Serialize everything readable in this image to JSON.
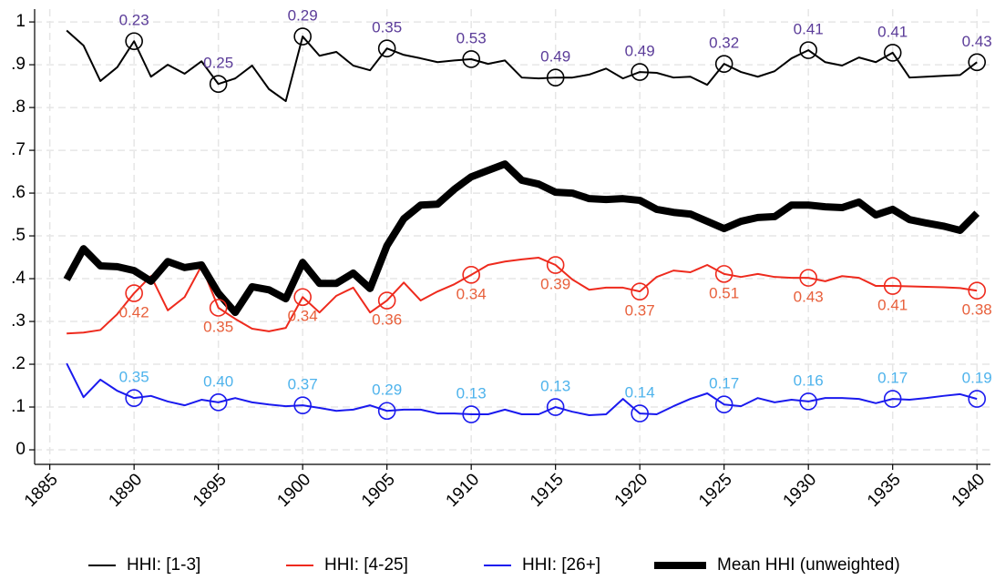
{
  "chart_data": {
    "type": "line",
    "x": [
      1886,
      1887,
      1888,
      1889,
      1890,
      1891,
      1892,
      1893,
      1894,
      1895,
      1896,
      1897,
      1898,
      1899,
      1900,
      1901,
      1902,
      1903,
      1904,
      1905,
      1906,
      1907,
      1908,
      1909,
      1910,
      1911,
      1912,
      1913,
      1914,
      1915,
      1916,
      1917,
      1918,
      1919,
      1920,
      1921,
      1922,
      1923,
      1924,
      1925,
      1926,
      1927,
      1928,
      1929,
      1930,
      1931,
      1932,
      1933,
      1934,
      1935,
      1936,
      1937,
      1938,
      1939,
      1940
    ],
    "series": [
      {
        "name": "HHI: [1-3]",
        "color": "#000000",
        "width": 2,
        "values": [
          0.98,
          0.945,
          0.862,
          0.894,
          0.955,
          0.872,
          0.9,
          0.879,
          0.908,
          0.855,
          0.868,
          0.898,
          0.843,
          0.815,
          0.966,
          0.921,
          0.93,
          0.898,
          0.887,
          0.938,
          0.923,
          0.915,
          0.906,
          0.91,
          0.913,
          0.902,
          0.91,
          0.87,
          0.868,
          0.87,
          0.87,
          0.877,
          0.891,
          0.868,
          0.883,
          0.881,
          0.87,
          0.872,
          0.853,
          0.902,
          0.883,
          0.872,
          0.885,
          0.915,
          0.934,
          0.906,
          0.898,
          0.917,
          0.906,
          0.928,
          0.87,
          0.872,
          0.874,
          0.876,
          0.906
        ],
        "annotation_years": [
          1890,
          1895,
          1900,
          1905,
          1910,
          1915,
          1920,
          1925,
          1930,
          1935,
          1940
        ],
        "annotation_labels": [
          "0.23",
          "0.25",
          "0.29",
          "0.35",
          "0.53",
          "0.49",
          "0.49",
          "0.32",
          "0.41",
          "0.41",
          "0.43"
        ],
        "label_color": "#5b3c99",
        "label_position": "above"
      },
      {
        "name": "HHI: [4-25]",
        "color": "#ee2a1d",
        "width": 2,
        "values": [
          0.272,
          0.274,
          0.28,
          0.317,
          0.366,
          0.406,
          0.326,
          0.357,
          0.43,
          0.332,
          0.306,
          0.283,
          0.277,
          0.285,
          0.357,
          0.321,
          0.36,
          0.379,
          0.321,
          0.349,
          0.391,
          0.349,
          0.37,
          0.387,
          0.409,
          0.432,
          0.44,
          0.445,
          0.449,
          0.432,
          0.398,
          0.374,
          0.379,
          0.379,
          0.37,
          0.404,
          0.419,
          0.415,
          0.432,
          0.411,
          0.404,
          0.411,
          0.404,
          0.402,
          0.402,
          0.394,
          0.406,
          0.402,
          0.383,
          0.383,
          0.382,
          0.381,
          0.38,
          0.378,
          0.372
        ],
        "annotation_years": [
          1890,
          1895,
          1900,
          1905,
          1910,
          1915,
          1920,
          1925,
          1930,
          1935,
          1940
        ],
        "annotation_labels": [
          "0.42",
          "0.35",
          "0.34",
          "0.36",
          "0.34",
          "0.39",
          "0.37",
          "0.51",
          "0.43",
          "0.41",
          "0.38"
        ],
        "label_color": "#e8603c",
        "label_position": "below"
      },
      {
        "name": "HHI: [26+]",
        "color": "#1a1aee",
        "width": 2,
        "values": [
          0.202,
          0.123,
          0.164,
          0.138,
          0.121,
          0.126,
          0.113,
          0.104,
          0.117,
          0.111,
          0.121,
          0.111,
          0.106,
          0.102,
          0.104,
          0.098,
          0.091,
          0.094,
          0.104,
          0.091,
          0.094,
          0.094,
          0.085,
          0.085,
          0.083,
          0.083,
          0.094,
          0.083,
          0.083,
          0.1,
          0.089,
          0.081,
          0.083,
          0.119,
          0.085,
          0.083,
          0.102,
          0.119,
          0.132,
          0.106,
          0.102,
          0.121,
          0.111,
          0.117,
          0.113,
          0.121,
          0.121,
          0.119,
          0.109,
          0.119,
          0.117,
          0.121,
          0.126,
          0.13,
          0.119
        ],
        "annotation_years": [
          1890,
          1895,
          1900,
          1905,
          1910,
          1915,
          1920,
          1925,
          1930,
          1935,
          1940
        ],
        "annotation_labels": [
          "0.35",
          "0.40",
          "0.37",
          "0.29",
          "0.13",
          "0.13",
          "0.14",
          "0.17",
          "0.16",
          "0.17",
          "0.19"
        ],
        "label_color": "#4eb3ec",
        "label_position": "above"
      },
      {
        "name": "Mean HHI (unweighted)",
        "color": "#000000",
        "width": 8,
        "values": [
          0.398,
          0.47,
          0.43,
          0.428,
          0.419,
          0.394,
          0.44,
          0.426,
          0.432,
          0.366,
          0.321,
          0.381,
          0.374,
          0.353,
          0.438,
          0.389,
          0.389,
          0.413,
          0.377,
          0.477,
          0.54,
          0.572,
          0.574,
          0.609,
          0.638,
          0.653,
          0.668,
          0.63,
          0.621,
          0.602,
          0.6,
          0.587,
          0.585,
          0.587,
          0.583,
          0.562,
          0.555,
          0.551,
          0.534,
          0.517,
          0.534,
          0.543,
          0.545,
          0.572,
          0.572,
          0.568,
          0.566,
          0.579,
          0.549,
          0.562,
          0.538,
          0.53,
          0.523,
          0.513,
          0.553
        ]
      }
    ],
    "xlim": [
      1884.1,
      1940.8
    ],
    "xticks": [
      1885,
      1890,
      1895,
      1900,
      1905,
      1910,
      1915,
      1920,
      1925,
      1930,
      1935,
      1940
    ],
    "ylim": [
      -0.034,
      1.03
    ],
    "yticks": [
      0,
      {
        "value": 0.1,
        "label": ".1"
      },
      {
        "value": 0.2,
        "label": ".2"
      },
      {
        "value": 0.3,
        "label": ".3"
      },
      {
        "value": 0.4,
        "label": ".4"
      },
      {
        "value": 0.5,
        "label": ".5"
      },
      {
        "value": 0.6,
        "label": ".6"
      },
      {
        "value": 0.7,
        "label": ".7"
      },
      {
        "value": 0.8,
        "label": ".8"
      },
      {
        "value": 0.9,
        "label": ".9"
      },
      1
    ],
    "grid": true,
    "legend": "bottom"
  }
}
